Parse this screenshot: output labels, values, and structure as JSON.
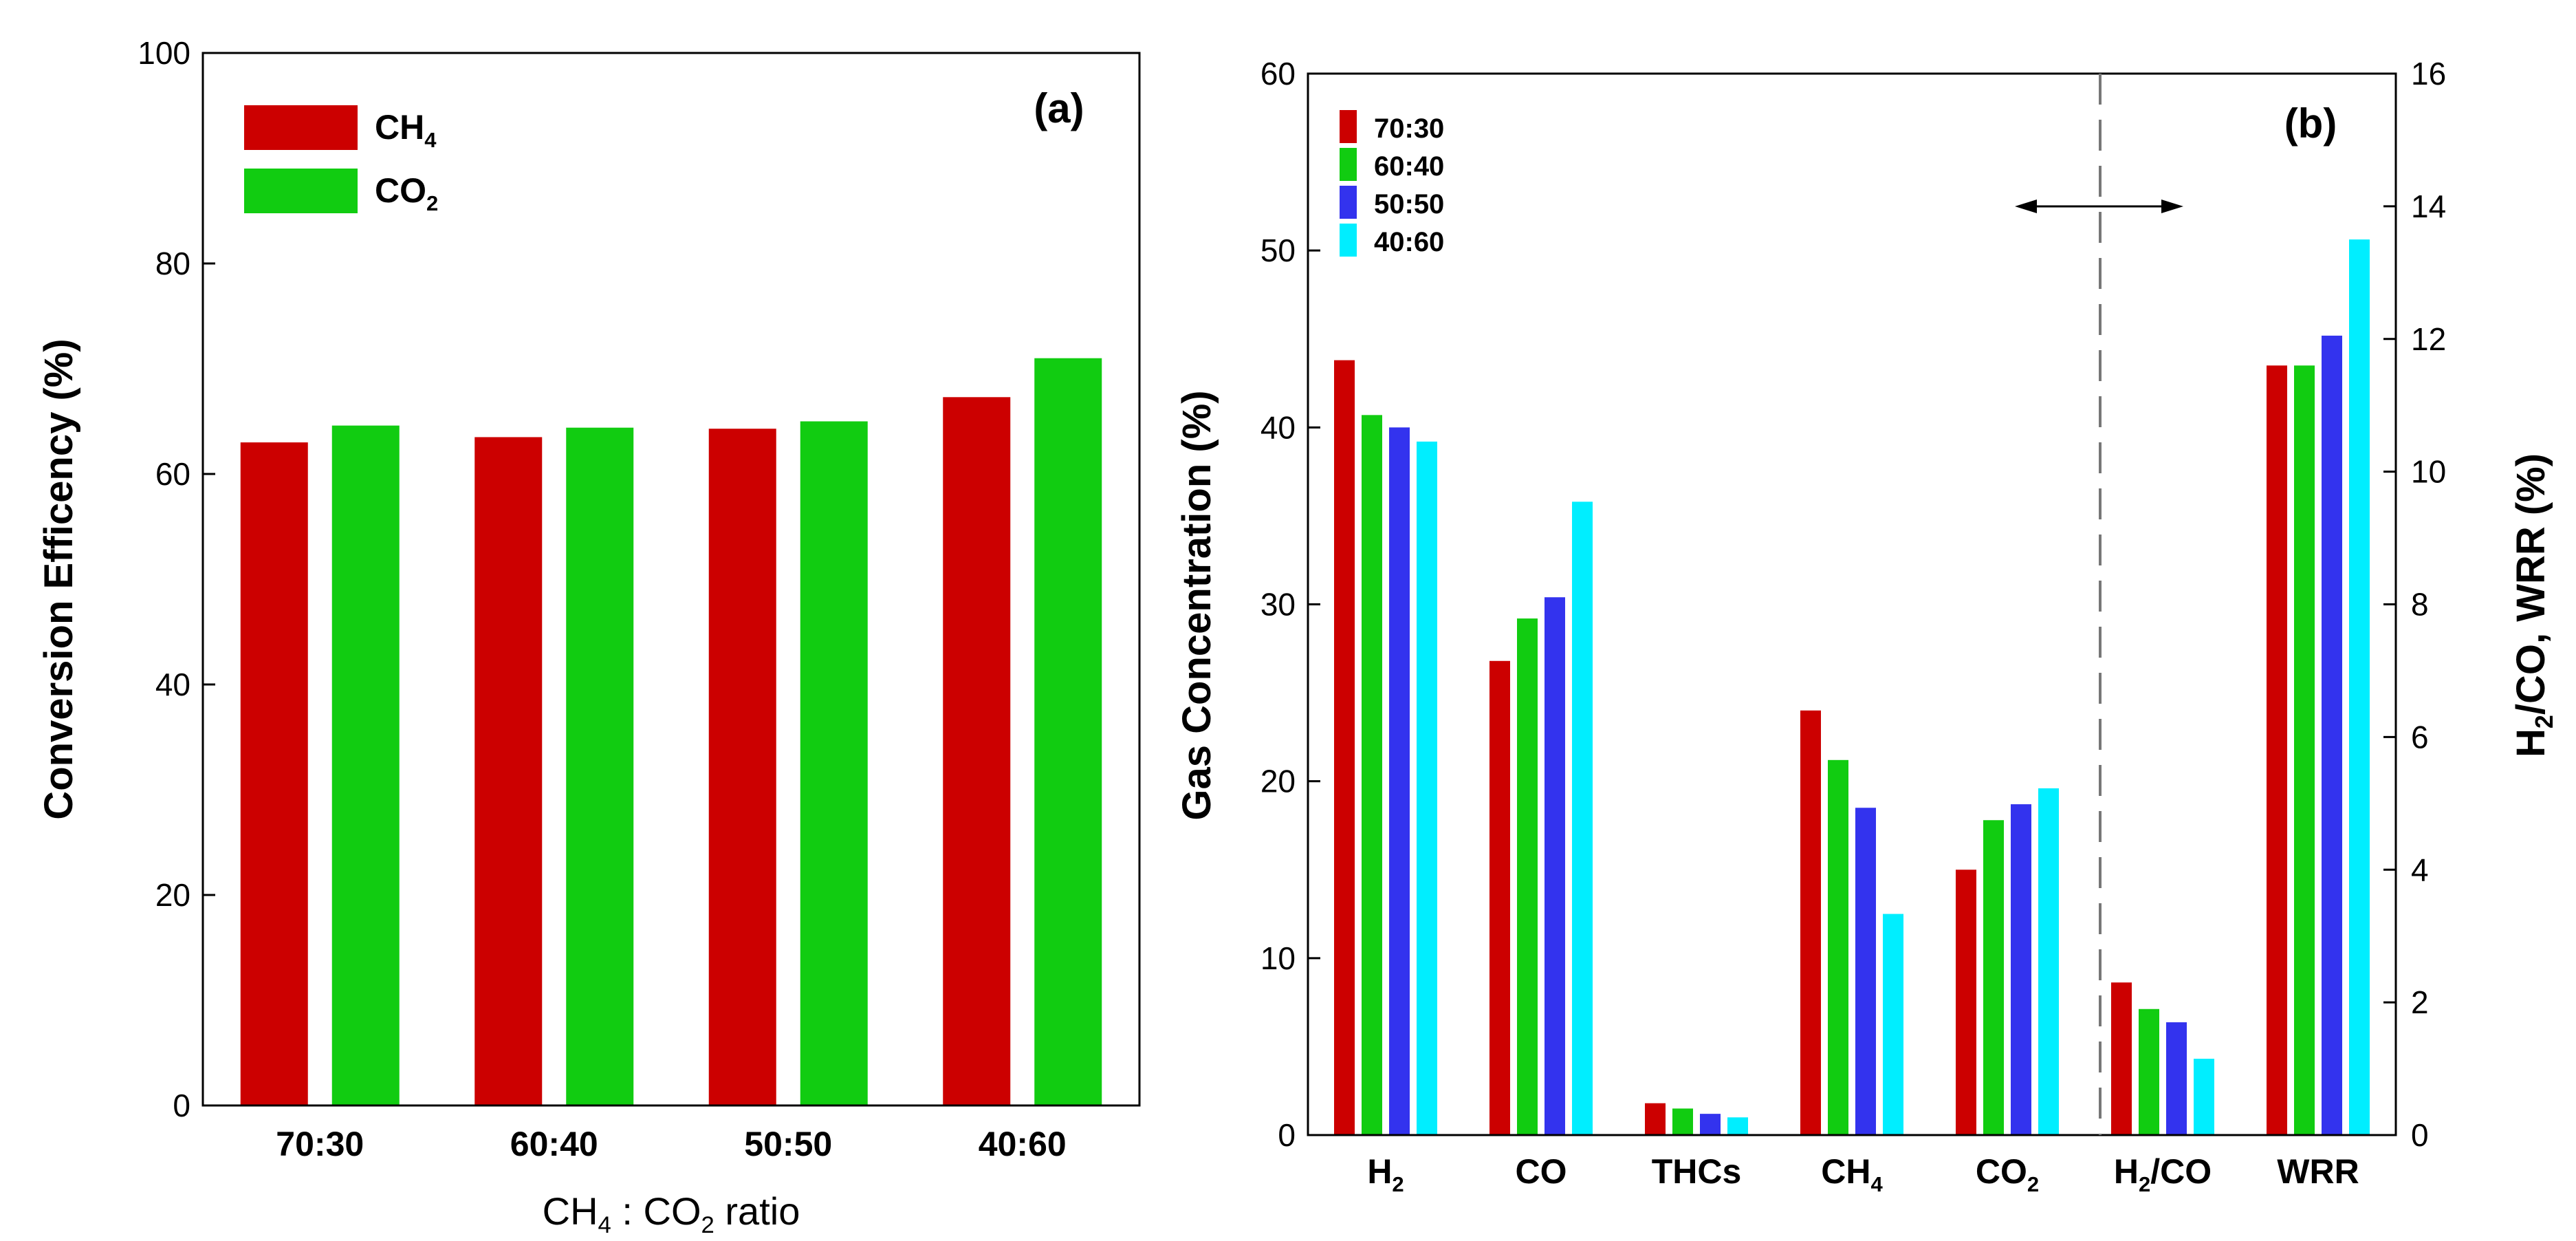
{
  "chart_data": [
    {
      "type": "bar",
      "panel_label": "(a)",
      "categories": [
        "70:30",
        "60:40",
        "50:50",
        "40:60"
      ],
      "series": [
        {
          "name": "CH4",
          "label_main": "CH",
          "label_sub": "4",
          "color": "#cc0000",
          "values": [
            63,
            63.5,
            64.3,
            67.3
          ]
        },
        {
          "name": "CO2",
          "label_main": "CO",
          "label_sub": "2",
          "color": "#11cc11",
          "values": [
            64.6,
            64.4,
            65,
            71
          ]
        }
      ],
      "ylabel": "Conversion Efficency (%)",
      "xlabel": {
        "p1": "CH",
        "s1": "4",
        "p2": " : CO",
        "s2": "2",
        "p3": " ratio"
      },
      "ylim": [
        0,
        100
      ],
      "yticks": [
        "0",
        "20",
        "40",
        "60",
        "80",
        "100"
      ],
      "grid": false,
      "legend_position": "top-left"
    },
    {
      "type": "bar",
      "panel_label": "(b)",
      "categories": [
        {
          "main": "H",
          "sub": "2",
          "axis": "left"
        },
        {
          "main": "CO",
          "sub": "",
          "axis": "left"
        },
        {
          "main": "THCs",
          "sub": "",
          "axis": "left"
        },
        {
          "main": "CH",
          "sub": "4",
          "axis": "left"
        },
        {
          "main": "CO",
          "sub": "2",
          "axis": "left"
        },
        {
          "main": "H",
          "sub": "2",
          "tail": "/CO",
          "axis": "right"
        },
        {
          "main": "WRR",
          "sub": "",
          "axis": "right"
        }
      ],
      "series": [
        {
          "name": "70:30",
          "color": "#cc0000",
          "values": [
            43.8,
            26.8,
            1.8,
            24,
            15,
            2.3,
            11.6
          ]
        },
        {
          "name": "60:40",
          "color": "#11cc11",
          "values": [
            40.7,
            29.2,
            1.5,
            21.2,
            17.8,
            1.9,
            11.6
          ]
        },
        {
          "name": "50:50",
          "color": "#3333ee",
          "values": [
            40,
            30.4,
            1.2,
            18.5,
            18.7,
            1.7,
            12.05
          ]
        },
        {
          "name": "40:60",
          "color": "#00eeff",
          "values": [
            39.2,
            35.8,
            1,
            12.5,
            19.6,
            1.15,
            13.5
          ]
        }
      ],
      "ylabel": "Gas Concentration (%)",
      "ylabel_right": {
        "p1": "H",
        "s1": "2",
        "p2": "/CO, WRR (%)"
      },
      "ylim": [
        0,
        60
      ],
      "ylim_right": [
        0,
        16
      ],
      "yticks": [
        "0",
        "10",
        "20",
        "30",
        "40",
        "50",
        "60"
      ],
      "yticks_right": [
        "0",
        "2",
        "4",
        "6",
        "8",
        "10",
        "12",
        "14",
        "16"
      ],
      "grid": false,
      "legend_position": "top-left"
    }
  ]
}
